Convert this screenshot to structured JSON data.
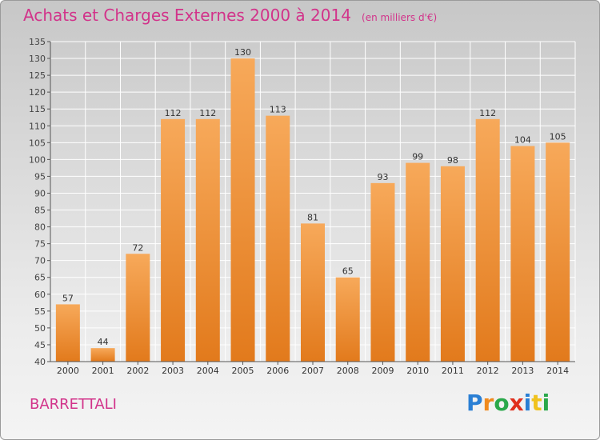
{
  "chart_data": {
    "type": "bar",
    "title": "Achats et Charges Externes 2000 à 2014",
    "subtitle": "(en milliers d'€)",
    "xlabel": "",
    "ylabel": "",
    "categories": [
      "2000",
      "2001",
      "2002",
      "2003",
      "2004",
      "2005",
      "2006",
      "2007",
      "2008",
      "2009",
      "2010",
      "2011",
      "2012",
      "2013",
      "2014"
    ],
    "values": [
      57,
      44,
      72,
      112,
      112,
      130,
      113,
      81,
      65,
      93,
      99,
      98,
      112,
      104,
      105
    ],
    "data_labels": [
      "57",
      "44",
      "72",
      "112",
      "112",
      "130",
      "113",
      "81",
      "65",
      "93",
      "99",
      "98",
      "112",
      "104",
      "105"
    ],
    "ylim": [
      40,
      135
    ],
    "yticks": [
      40,
      45,
      50,
      55,
      60,
      65,
      70,
      75,
      80,
      85,
      90,
      95,
      100,
      105,
      110,
      115,
      120,
      125,
      130,
      135
    ],
    "grid": true,
    "legend": "none",
    "colors": {
      "bar_light": "#f7a95a",
      "bar_dark": "#e27a1c",
      "grid": "#ffffff",
      "axis": "#555555",
      "title": "#d2338a"
    }
  },
  "footer": {
    "commune": "BARRETTALI"
  },
  "logo": {
    "text": "Proxiti",
    "letters": [
      {
        "char": "P",
        "color": "#2a7fd4"
      },
      {
        "char": "r",
        "color": "#f08a1e"
      },
      {
        "char": "o",
        "color": "#2aa84a"
      },
      {
        "char": "x",
        "color": "#e0301e"
      },
      {
        "char": "i",
        "color": "#2a7fd4"
      },
      {
        "char": "t",
        "color": "#f0c21e"
      },
      {
        "char": "i",
        "color": "#2aa84a"
      }
    ]
  }
}
